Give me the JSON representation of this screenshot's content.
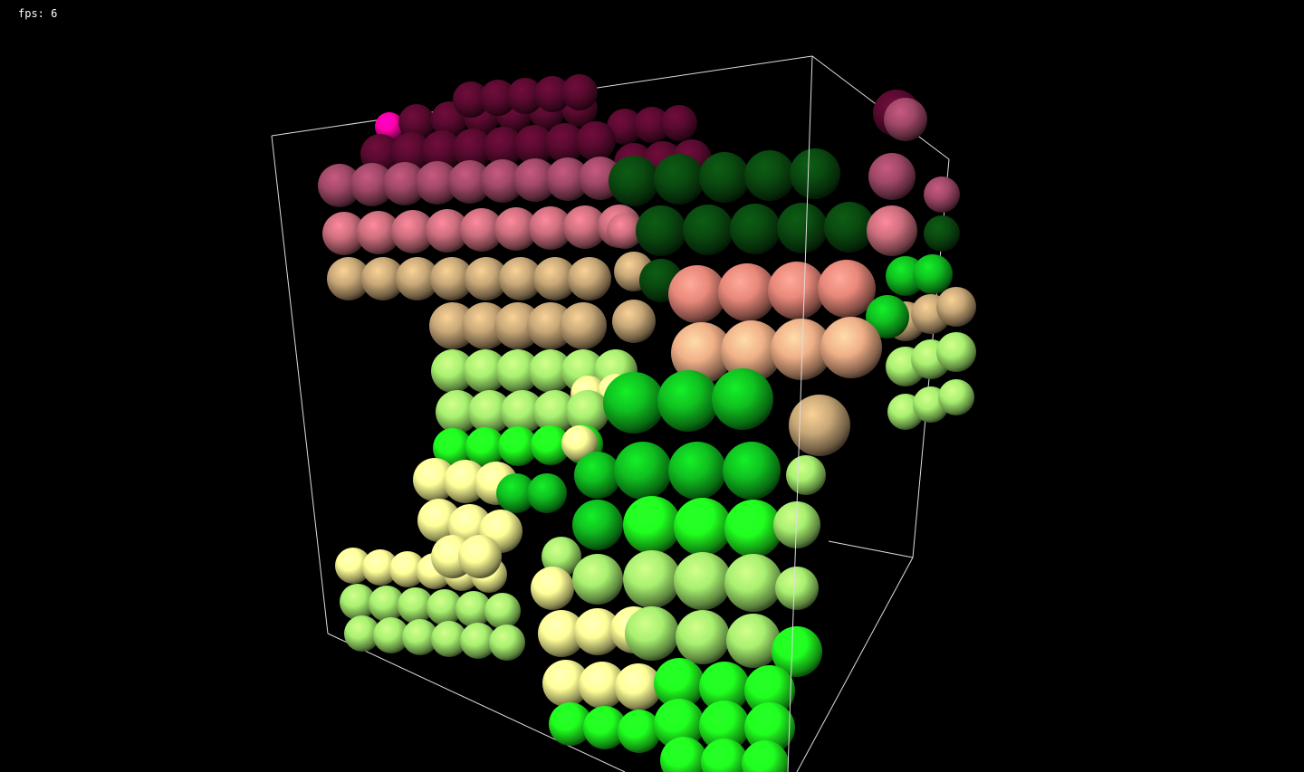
{
  "hud": {
    "fps_label": "fps:",
    "fps_value": "6"
  },
  "scene": {
    "background_color": "#000000",
    "bounding_box_color": "#dddddd",
    "object_type": "sphere-particle-stack",
    "palette": {
      "magenta": "#ff00a8",
      "dark_maroon": "#5a0a30",
      "mauve": "#a04868",
      "rose": "#cc6e7e",
      "salmon": "#e8887a",
      "tan": "#c8a878",
      "peach": "#f0b088",
      "dark_green": "#0a4a10",
      "green": "#10c020",
      "bright_green": "#20ff20",
      "lime": "#a8f070",
      "pale_yellow": "#ffff98"
    }
  }
}
